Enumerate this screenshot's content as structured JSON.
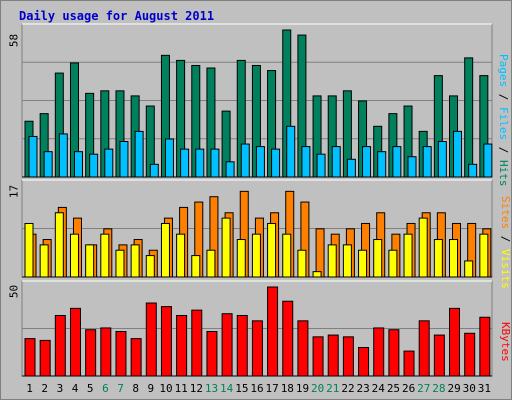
{
  "title": "Daily usage for August 2011",
  "colors": {
    "background": "#C0C0C0",
    "panel": "#C0C0C0",
    "title": "#0000CC",
    "hits": "#00805C",
    "files": "#00C0FF",
    "pages": "#00C0FF",
    "sites": "#FF8000",
    "visits": "#FFFF00",
    "kbytes": "#FF0000",
    "weekend_label": "#00805C",
    "weekday_label": "#000000"
  },
  "axis_maxima": {
    "top": "58",
    "middle": "17",
    "bottom": "50"
  },
  "legend": {
    "top": [
      "Pages",
      " / ",
      "Files",
      " / ",
      "Hits"
    ],
    "middle": [
      "Sites",
      " / ",
      "Visits"
    ],
    "bottom": [
      "KBytes"
    ]
  },
  "chart_data": [
    {
      "type": "bar",
      "title": "Daily usage for August 2011",
      "categories": [
        "1",
        "2",
        "3",
        "4",
        "5",
        "6",
        "7",
        "8",
        "9",
        "10",
        "11",
        "12",
        "13",
        "14",
        "15",
        "16",
        "17",
        "18",
        "19",
        "20",
        "21",
        "22",
        "23",
        "24",
        "25",
        "26",
        "27",
        "28",
        "29",
        "30",
        "31"
      ],
      "weekend_days": [
        "6",
        "7",
        "13",
        "14",
        "20",
        "21",
        "27",
        "28"
      ],
      "ylim": [
        0,
        58
      ],
      "y_label": "58",
      "series": [
        {
          "name": "Hits",
          "color": "#00805C",
          "values": [
            22,
            25,
            41,
            45,
            33,
            34,
            34,
            32,
            28,
            48,
            46,
            44,
            43,
            26,
            46,
            44,
            42,
            58,
            56,
            32,
            32,
            34,
            30,
            20,
            25,
            28,
            18,
            40,
            32,
            47,
            40
          ]
        },
        {
          "name": "Files",
          "color": "#00C0FF",
          "values": [
            16,
            10,
            17,
            10,
            9,
            11,
            14,
            18,
            5,
            15,
            11,
            11,
            11,
            6,
            13,
            12,
            11,
            20,
            12,
            9,
            12,
            7,
            12,
            10,
            12,
            8,
            12,
            14,
            18,
            5,
            13
          ]
        },
        {
          "name": "Pages",
          "color": "#00C0FF",
          "values": [
            16,
            10,
            17,
            10,
            9,
            11,
            14,
            18,
            5,
            15,
            11,
            11,
            11,
            6,
            13,
            12,
            11,
            20,
            12,
            9,
            12,
            7,
            12,
            10,
            12,
            8,
            12,
            14,
            18,
            5,
            13
          ]
        }
      ]
    },
    {
      "type": "bar",
      "categories": [
        "1",
        "2",
        "3",
        "4",
        "5",
        "6",
        "7",
        "8",
        "9",
        "10",
        "11",
        "12",
        "13",
        "14",
        "15",
        "16",
        "17",
        "18",
        "19",
        "20",
        "21",
        "22",
        "23",
        "24",
        "25",
        "26",
        "27",
        "28",
        "29",
        "30",
        "31"
      ],
      "ylim": [
        0,
        17
      ],
      "y_label": "17",
      "series": [
        {
          "name": "Sites",
          "color": "#FF8000",
          "values": [
            8,
            7,
            13,
            11,
            6,
            9,
            6,
            7,
            5,
            11,
            13,
            14,
            15,
            12,
            16,
            11,
            12,
            16,
            14,
            9,
            8,
            9,
            10,
            12,
            8,
            10,
            12,
            12,
            10,
            10,
            9
          ]
        },
        {
          "name": "Visits",
          "color": "#FFFF00",
          "values": [
            10,
            6,
            12,
            8,
            6,
            8,
            5,
            6,
            4,
            10,
            8,
            4,
            5,
            11,
            7,
            8,
            10,
            8,
            5,
            1,
            6,
            6,
            5,
            7,
            5,
            8,
            11,
            7,
            7,
            3,
            8
          ]
        }
      ]
    },
    {
      "type": "bar",
      "categories": [
        "1",
        "2",
        "3",
        "4",
        "5",
        "6",
        "7",
        "8",
        "9",
        "10",
        "11",
        "12",
        "13",
        "14",
        "15",
        "16",
        "17",
        "18",
        "19",
        "20",
        "21",
        "22",
        "23",
        "24",
        "25",
        "26",
        "27",
        "28",
        "29",
        "30",
        "31"
      ],
      "ylim": [
        0,
        50
      ],
      "y_label": "50",
      "series": [
        {
          "name": "KBytes",
          "color": "#FF0000",
          "values": [
            21,
            20,
            34,
            38,
            26,
            27,
            25,
            21,
            41,
            39,
            34,
            37,
            25,
            35,
            34,
            31,
            50,
            42,
            31,
            22,
            23,
            22,
            16,
            27,
            26,
            14,
            31,
            23,
            38,
            24,
            33
          ]
        }
      ]
    }
  ]
}
